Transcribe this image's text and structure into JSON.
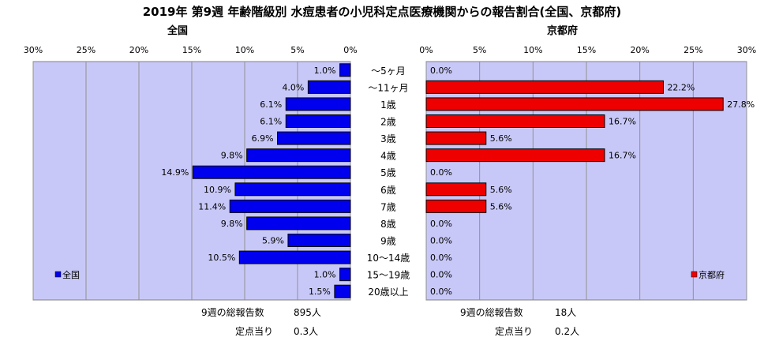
{
  "title": "2019年 第9週 年齢階級別 水痘患者の小児科定点医療機関からの報告割合(全国、京都府)",
  "left_panel": {
    "title": "全国",
    "legend": "全国",
    "total_label": "9週の総報告数",
    "total_value": "895人",
    "per_site_label": "定点当り",
    "per_site_value": "0.3人"
  },
  "right_panel": {
    "title": "京都府",
    "legend": "京都府",
    "total_label": "9週の総報告数",
    "total_value": "18人",
    "per_site_label": "定点当り",
    "per_site_value": "0.2人"
  },
  "colors": {
    "national": "#0000ee",
    "kyoto": "#ee0000",
    "plot_bg": "#c8c8f8"
  },
  "chart_data": [
    {
      "type": "bar",
      "orientation": "horizontal",
      "direction": "right-to-left",
      "categories": [
        "〜5ヶ月",
        "〜11ヶ月",
        "1歳",
        "2歳",
        "3歳",
        "4歳",
        "5歳",
        "6歳",
        "7歳",
        "8歳",
        "9歳",
        "10〜14歳",
        "15〜19歳",
        "20歳以上"
      ],
      "series": [
        {
          "name": "全国",
          "values": [
            1.0,
            4.0,
            6.1,
            6.1,
            6.9,
            9.8,
            14.9,
            10.9,
            11.4,
            9.8,
            5.9,
            10.5,
            1.0,
            1.5
          ]
        }
      ],
      "xlim": [
        0,
        30
      ],
      "ticks": [
        "0%",
        "5%",
        "10%",
        "15%",
        "20%",
        "25%",
        "30%"
      ],
      "data_labels": [
        "1.0%",
        "4.0%",
        "6.1%",
        "6.1%",
        "6.9%",
        "9.8%",
        "14.9%",
        "10.9%",
        "11.4%",
        "9.8%",
        "5.9%",
        "10.5%",
        "1.0%",
        "1.5%"
      ],
      "grid": true,
      "legend": "bottom-left"
    },
    {
      "type": "bar",
      "orientation": "horizontal",
      "direction": "left-to-right",
      "categories": [
        "〜5ヶ月",
        "〜11ヶ月",
        "1歳",
        "2歳",
        "3歳",
        "4歳",
        "5歳",
        "6歳",
        "7歳",
        "8歳",
        "9歳",
        "10〜14歳",
        "15〜19歳",
        "20歳以上"
      ],
      "series": [
        {
          "name": "京都府",
          "values": [
            0.0,
            22.2,
            27.8,
            16.7,
            5.6,
            16.7,
            0.0,
            5.6,
            5.6,
            0.0,
            0.0,
            0.0,
            0.0,
            0.0
          ]
        }
      ],
      "xlim": [
        0,
        30
      ],
      "ticks": [
        "0%",
        "5%",
        "10%",
        "15%",
        "20%",
        "25%",
        "30%"
      ],
      "data_labels": [
        "0.0%",
        "22.2%",
        "27.8%",
        "16.7%",
        "5.6%",
        "16.7%",
        "0.0%",
        "5.6%",
        "5.6%",
        "0.0%",
        "0.0%",
        "0.0%",
        "0.0%",
        "0.0%"
      ],
      "grid": true,
      "legend": "bottom-right"
    }
  ]
}
